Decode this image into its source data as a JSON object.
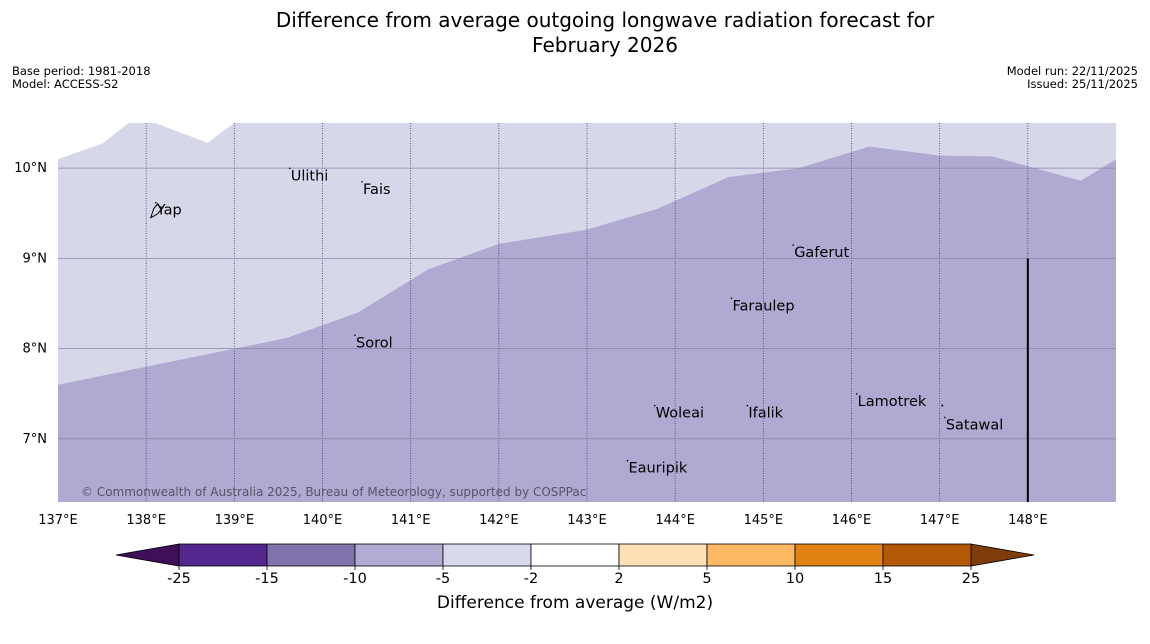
{
  "header": {
    "title_line1": "Difference from average outgoing longwave radiation forecast for",
    "title_line2": "February 2026",
    "base_period": "Base period: 1981-2018",
    "model": "Model: ACCESS-S2",
    "model_run": "Model run: 22/11/2025",
    "issued": "Issued: 25/11/2025"
  },
  "map": {
    "lon_range": [
      137,
      149
    ],
    "lat_range": [
      6.3,
      10.5
    ],
    "lon_ticks": [
      {
        "lon": 137,
        "label": "137°E"
      },
      {
        "lon": 138,
        "label": "138°E"
      },
      {
        "lon": 139,
        "label": "139°E"
      },
      {
        "lon": 140,
        "label": "140°E"
      },
      {
        "lon": 141,
        "label": "141°E"
      },
      {
        "lon": 142,
        "label": "142°E"
      },
      {
        "lon": 143,
        "label": "143°E"
      },
      {
        "lon": 144,
        "label": "144°E"
      },
      {
        "lon": 145,
        "label": "145°E"
      },
      {
        "lon": 146,
        "label": "146°E"
      },
      {
        "lon": 147,
        "label": "147°E"
      },
      {
        "lon": 148,
        "label": "148°E"
      }
    ],
    "lat_ticks": [
      {
        "lat": 10,
        "label": "10°N"
      },
      {
        "lat": 9,
        "label": "9°N"
      },
      {
        "lat": 8,
        "label": "8°N"
      },
      {
        "lat": 7,
        "label": "7°N"
      }
    ],
    "regions": [
      {
        "name": "-5 to -2",
        "color": "#d7d7ea"
      },
      {
        "name": "-10 to -5",
        "color": "#b0aad2"
      }
    ],
    "boundary": [
      [
        137.0,
        7.6
      ],
      [
        138.0,
        7.8
      ],
      [
        139.0,
        8.0
      ],
      [
        139.6,
        8.12
      ],
      [
        140.4,
        8.4
      ],
      [
        141.2,
        8.88
      ],
      [
        142.0,
        9.16
      ],
      [
        143.0,
        9.32
      ],
      [
        143.8,
        9.55
      ],
      [
        144.6,
        9.9
      ],
      [
        145.4,
        10.0
      ],
      [
        146.2,
        10.24
      ],
      [
        147.0,
        10.14
      ],
      [
        147.6,
        10.13
      ],
      [
        148.6,
        9.86
      ],
      [
        149.0,
        10.1
      ]
    ],
    "top_notches": [
      [
        137.0,
        10.1
      ],
      [
        137.5,
        10.27
      ],
      [
        137.8,
        10.5
      ],
      [
        138.1,
        10.5
      ],
      [
        138.7,
        10.28
      ],
      [
        138.8,
        10.36
      ],
      [
        139.0,
        10.5
      ]
    ],
    "reference_line": {
      "lon": 148.0,
      "lat_from": 6.3,
      "lat_to": 9.0
    },
    "places": [
      {
        "name": "Yap",
        "lon": 138.12,
        "lat": 9.54
      },
      {
        "name": "Ulithi",
        "lon": 139.64,
        "lat": 9.92
      },
      {
        "name": "Fais",
        "lon": 140.46,
        "lat": 9.77
      },
      {
        "name": "Gaferut",
        "lon": 145.35,
        "lat": 9.07
      },
      {
        "name": "Faraulep",
        "lon": 144.65,
        "lat": 8.48
      },
      {
        "name": "Sorol",
        "lon": 140.38,
        "lat": 8.07
      },
      {
        "name": "Woleai",
        "lon": 143.78,
        "lat": 7.29
      },
      {
        "name": "Ifalik",
        "lon": 144.83,
        "lat": 7.29
      },
      {
        "name": "Lamotrek",
        "lon": 146.07,
        "lat": 7.42
      },
      {
        "name": "Satawal",
        "lon": 147.07,
        "lat": 7.16
      },
      {
        "name": "Eauripik",
        "lon": 143.47,
        "lat": 6.68
      }
    ],
    "copyright": "© Commonwealth of Australia 2025, Bureau of Meteorology, supported by COSPPac"
  },
  "colorbar": {
    "label": "Difference from average (W/m2)",
    "min_color": "#3f0f5a",
    "max_color": "#7f3b08",
    "bins": [
      {
        "from": "-25",
        "to": "-15",
        "color": "#54278f"
      },
      {
        "from": "-15",
        "to": "-10",
        "color": "#8073ac"
      },
      {
        "from": "-10",
        "to": "-5",
        "color": "#b2abd2"
      },
      {
        "from": "-5",
        "to": "-2",
        "color": "#d8daeb"
      },
      {
        "from": "-2",
        "to": "2",
        "color": "#ffffff"
      },
      {
        "from": "2",
        "to": "5",
        "color": "#fee0b6"
      },
      {
        "from": "5",
        "to": "10",
        "color": "#fdb863"
      },
      {
        "from": "10",
        "to": "15",
        "color": "#e08214"
      },
      {
        "from": "15",
        "to": "25",
        "color": "#b35806"
      }
    ],
    "tick_labels": [
      "-25",
      "-15",
      "-10",
      "-5",
      "-2",
      "2",
      "5",
      "10",
      "15",
      "25"
    ]
  }
}
